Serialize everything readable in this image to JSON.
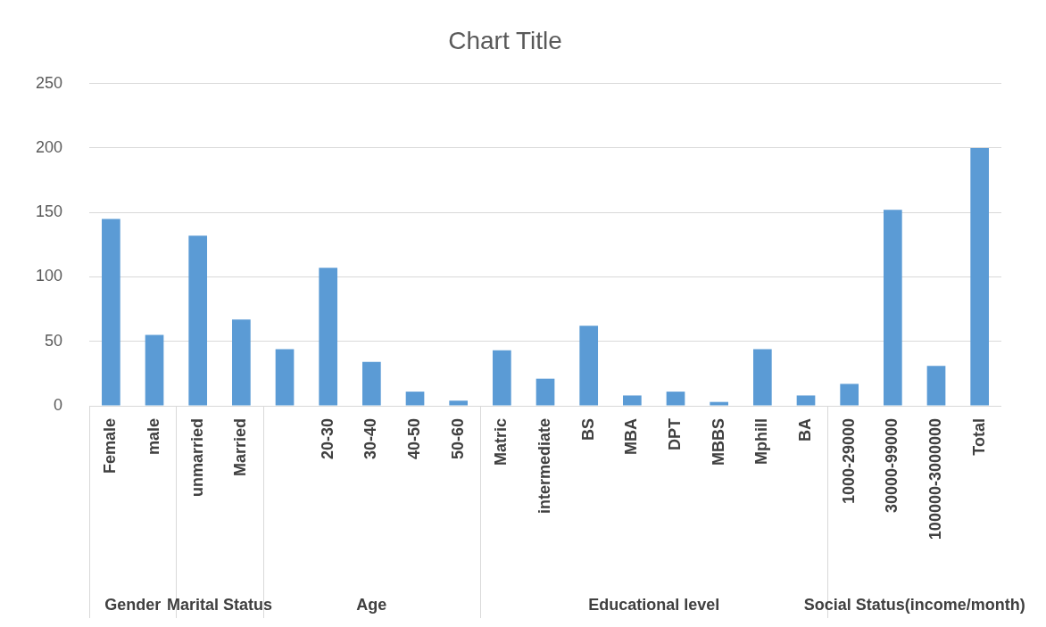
{
  "chart_data": {
    "type": "bar",
    "title": "Chart Title",
    "categories": [
      "Female",
      "male",
      "unmarried",
      "Married",
      null,
      "20-30",
      "30-40",
      "40-50",
      "50-60",
      "Matric",
      "intermediate",
      "BS",
      "MBA",
      "DPT",
      "MBBS",
      "Mphill",
      "BA",
      "1000-29000",
      "30000-99000",
      "100000-3000000",
      "Total"
    ],
    "values": [
      145,
      55,
      132,
      67,
      44,
      107,
      34,
      11,
      4,
      43,
      21,
      62,
      8,
      11,
      3,
      44,
      8,
      17,
      152,
      31,
      200
    ],
    "color": "#5b9bd5",
    "ylim": [
      0,
      250
    ],
    "yticks": [
      0,
      50,
      100,
      150,
      200,
      250
    ],
    "grid": "y",
    "legend": false,
    "annotations": [
      "Gender",
      "Marital Status",
      "Age",
      "Educational level",
      "Social Status(income/month)"
    ]
  }
}
